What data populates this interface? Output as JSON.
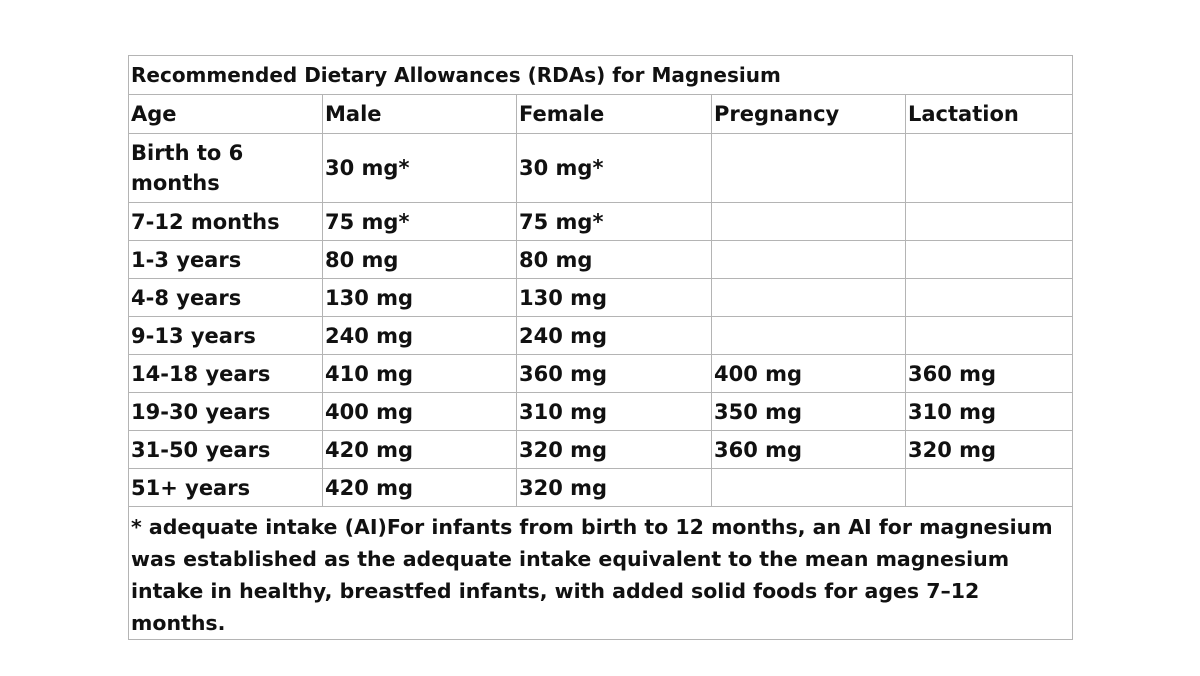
{
  "table": {
    "title": "Recommended Dietary Allowances (RDAs) for Magnesium",
    "headers": [
      "Age",
      "Male",
      "Female",
      "Pregnancy",
      "Lactation"
    ],
    "rows": [
      [
        "Birth to 6 months",
        "30 mg*",
        "30 mg*",
        "",
        ""
      ],
      [
        "7-12 months",
        "75 mg*",
        "75 mg*",
        "",
        ""
      ],
      [
        "1-3 years",
        "80 mg",
        "80 mg",
        "",
        ""
      ],
      [
        "4-8 years",
        "130 mg",
        "130 mg",
        "",
        ""
      ],
      [
        "9-13 years",
        "240 mg",
        "240 mg",
        "",
        ""
      ],
      [
        "14-18 years",
        "410 mg",
        "360 mg",
        "400 mg",
        "360 mg"
      ],
      [
        "19-30 years",
        "400 mg",
        "310 mg",
        "350 mg",
        "310 mg"
      ],
      [
        "31-50 years",
        "420 mg",
        "320 mg",
        "360 mg",
        "320 mg"
      ],
      [
        "51+ years",
        "420 mg",
        "320 mg",
        "",
        ""
      ]
    ],
    "footnote": "* adequate intake (AI)For infants from birth to 12 months, an AI for magnesium was established as the adequate intake equivalent to the mean magnesium intake in healthy, breastfed infants, with added solid foods for ages 7–12 months."
  }
}
